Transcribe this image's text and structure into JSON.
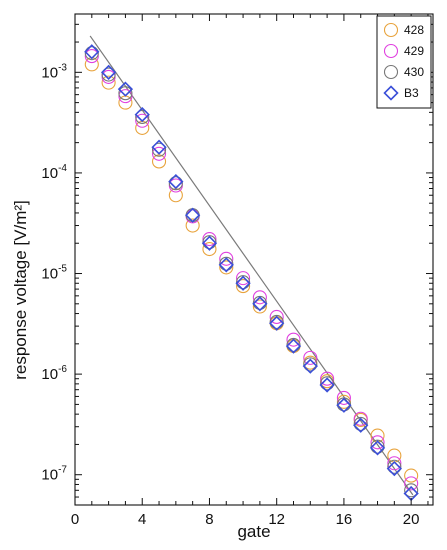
{
  "chart_data": {
    "type": "scatter",
    "title": "",
    "xlabel": "gate",
    "ylabel": "response voltage [V/m²]",
    "xlim": [
      0,
      21.3
    ],
    "ylim": [
      5e-08,
      0.0038
    ],
    "yscale": "log",
    "grid": false,
    "legend_position": "top-right",
    "x_ticks": [
      {
        "value": 0,
        "label": "0"
      },
      {
        "value": 4,
        "label": "4"
      },
      {
        "value": 8,
        "label": "8"
      },
      {
        "value": 12,
        "label": "12"
      },
      {
        "value": 16,
        "label": "16"
      },
      {
        "value": 20,
        "label": "20"
      }
    ],
    "y_ticks": [
      {
        "value": 1e-07,
        "base": "10",
        "exp": "-7"
      },
      {
        "value": 1e-06,
        "base": "10",
        "exp": "-6"
      },
      {
        "value": 1e-05,
        "base": "10",
        "exp": "-5"
      },
      {
        "value": 0.0001,
        "base": "10",
        "exp": "-4"
      },
      {
        "value": 0.001,
        "base": "10",
        "exp": "-3"
      }
    ],
    "x": [
      1,
      2,
      3,
      4,
      5,
      6,
      7,
      8,
      9,
      10,
      11,
      12,
      13,
      14,
      15,
      16,
      17,
      18,
      19,
      20
    ],
    "series": [
      {
        "name": "428",
        "marker": "circle",
        "color": "#E8A33C",
        "values": [
          0.0012,
          0.00079,
          0.0005,
          0.00028,
          0.00013,
          6e-05,
          3e-05,
          1.75e-05,
          1.15e-05,
          7.5e-06,
          4.7e-06,
          3.2e-06,
          1.9e-06,
          1.3e-06,
          8.5e-07,
          5.3e-07,
          3.5e-07,
          2.45e-07,
          1.55e-07,
          9.8e-08
        ]
      },
      {
        "name": "429",
        "marker": "circle",
        "color": "#E040E0",
        "values": [
          0.00145,
          0.0009,
          0.00058,
          0.00033,
          0.000155,
          7.5e-05,
          3.7e-05,
          2.2e-05,
          1.4e-05,
          9e-06,
          5.8e-06,
          3.7e-06,
          2.2e-06,
          1.45e-06,
          9e-07,
          5.8e-07,
          3.6e-07,
          2.1e-07,
          1.3e-07,
          8.2e-08
        ]
      },
      {
        "name": "430",
        "marker": "circle",
        "color": "#777777",
        "values": [
          0.00155,
          0.00095,
          0.00062,
          0.00036,
          0.00017,
          7.9e-05,
          3.8e-05,
          2.05e-05,
          1.25e-05,
          8.2e-06,
          5.1e-06,
          3.3e-06,
          1.95e-06,
          1.25e-06,
          8.1e-07,
          5e-07,
          3.2e-07,
          1.9e-07,
          1.2e-07,
          7e-08
        ]
      },
      {
        "name": "B3",
        "marker": "diamond",
        "color": "#3A4FD8",
        "values": [
          0.0016,
          0.001,
          0.00068,
          0.00038,
          0.00018,
          8.2e-05,
          3.8e-05,
          2e-05,
          1.22e-05,
          8e-06,
          5e-06,
          3.2e-06,
          1.9e-06,
          1.2e-06,
          7.8e-07,
          4.9e-07,
          3.1e-07,
          1.85e-07,
          1.15e-07,
          6.5e-08
        ]
      }
    ],
    "fit_line": {
      "color": "#7a7a7a",
      "x": [
        0.9,
        20.1
      ],
      "y": [
        0.0023,
        6.3e-08
      ]
    }
  }
}
